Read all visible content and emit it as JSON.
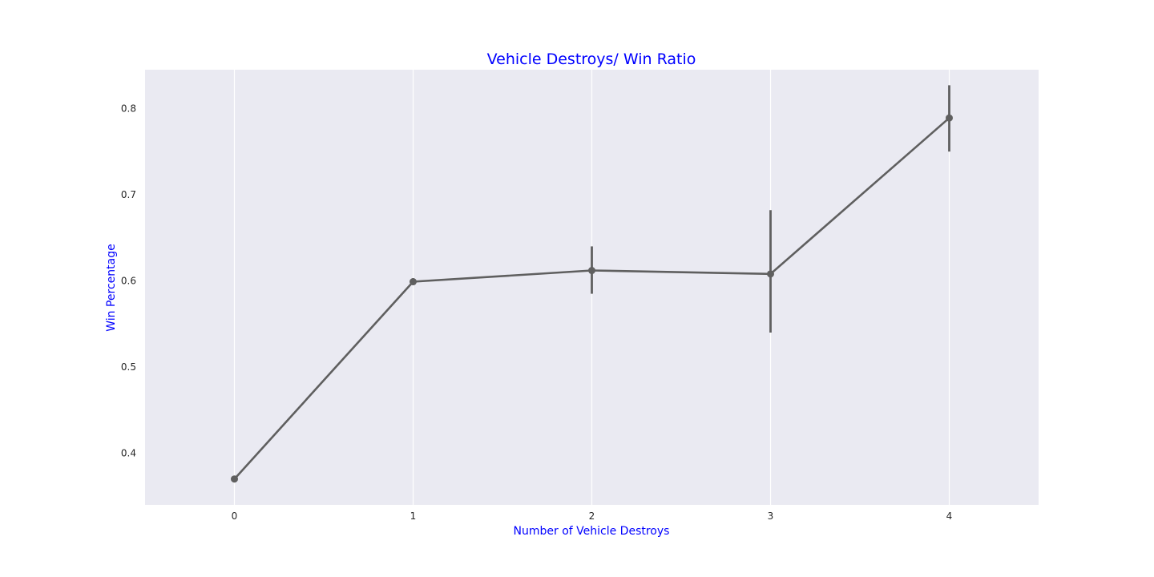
{
  "colors": {
    "background": "#ffffff",
    "plot_area": "#eaeaf2",
    "grid": "#ffffff",
    "series": "#5f5f5f",
    "labels": "#0000ff",
    "ticks": "#262626"
  },
  "chart_data": {
    "type": "line",
    "title": "Vehicle Destroys/ Win Ratio",
    "xlabel": "Number of Vehicle Destroys",
    "ylabel": "Win Percentage",
    "x": [
      0,
      1,
      2,
      3,
      4
    ],
    "x_tick_labels": [
      "0",
      "1",
      "2",
      "3",
      "4"
    ],
    "y_ticks": [
      0.4,
      0.5,
      0.6,
      0.7,
      0.8
    ],
    "y_tick_labels": [
      "0.4",
      "0.5",
      "0.6",
      "0.7",
      "0.8"
    ],
    "xlim": [
      -0.5,
      4.5
    ],
    "ylim": [
      0.34,
      0.845
    ],
    "grid": "vertical",
    "series": [
      {
        "values": [
          0.37,
          0.599,
          0.612,
          0.608,
          0.789
        ],
        "error_low": [
          0.368,
          0.596,
          0.585,
          0.54,
          0.75
        ],
        "error_high": [
          0.372,
          0.603,
          0.64,
          0.682,
          0.827
        ]
      }
    ]
  }
}
